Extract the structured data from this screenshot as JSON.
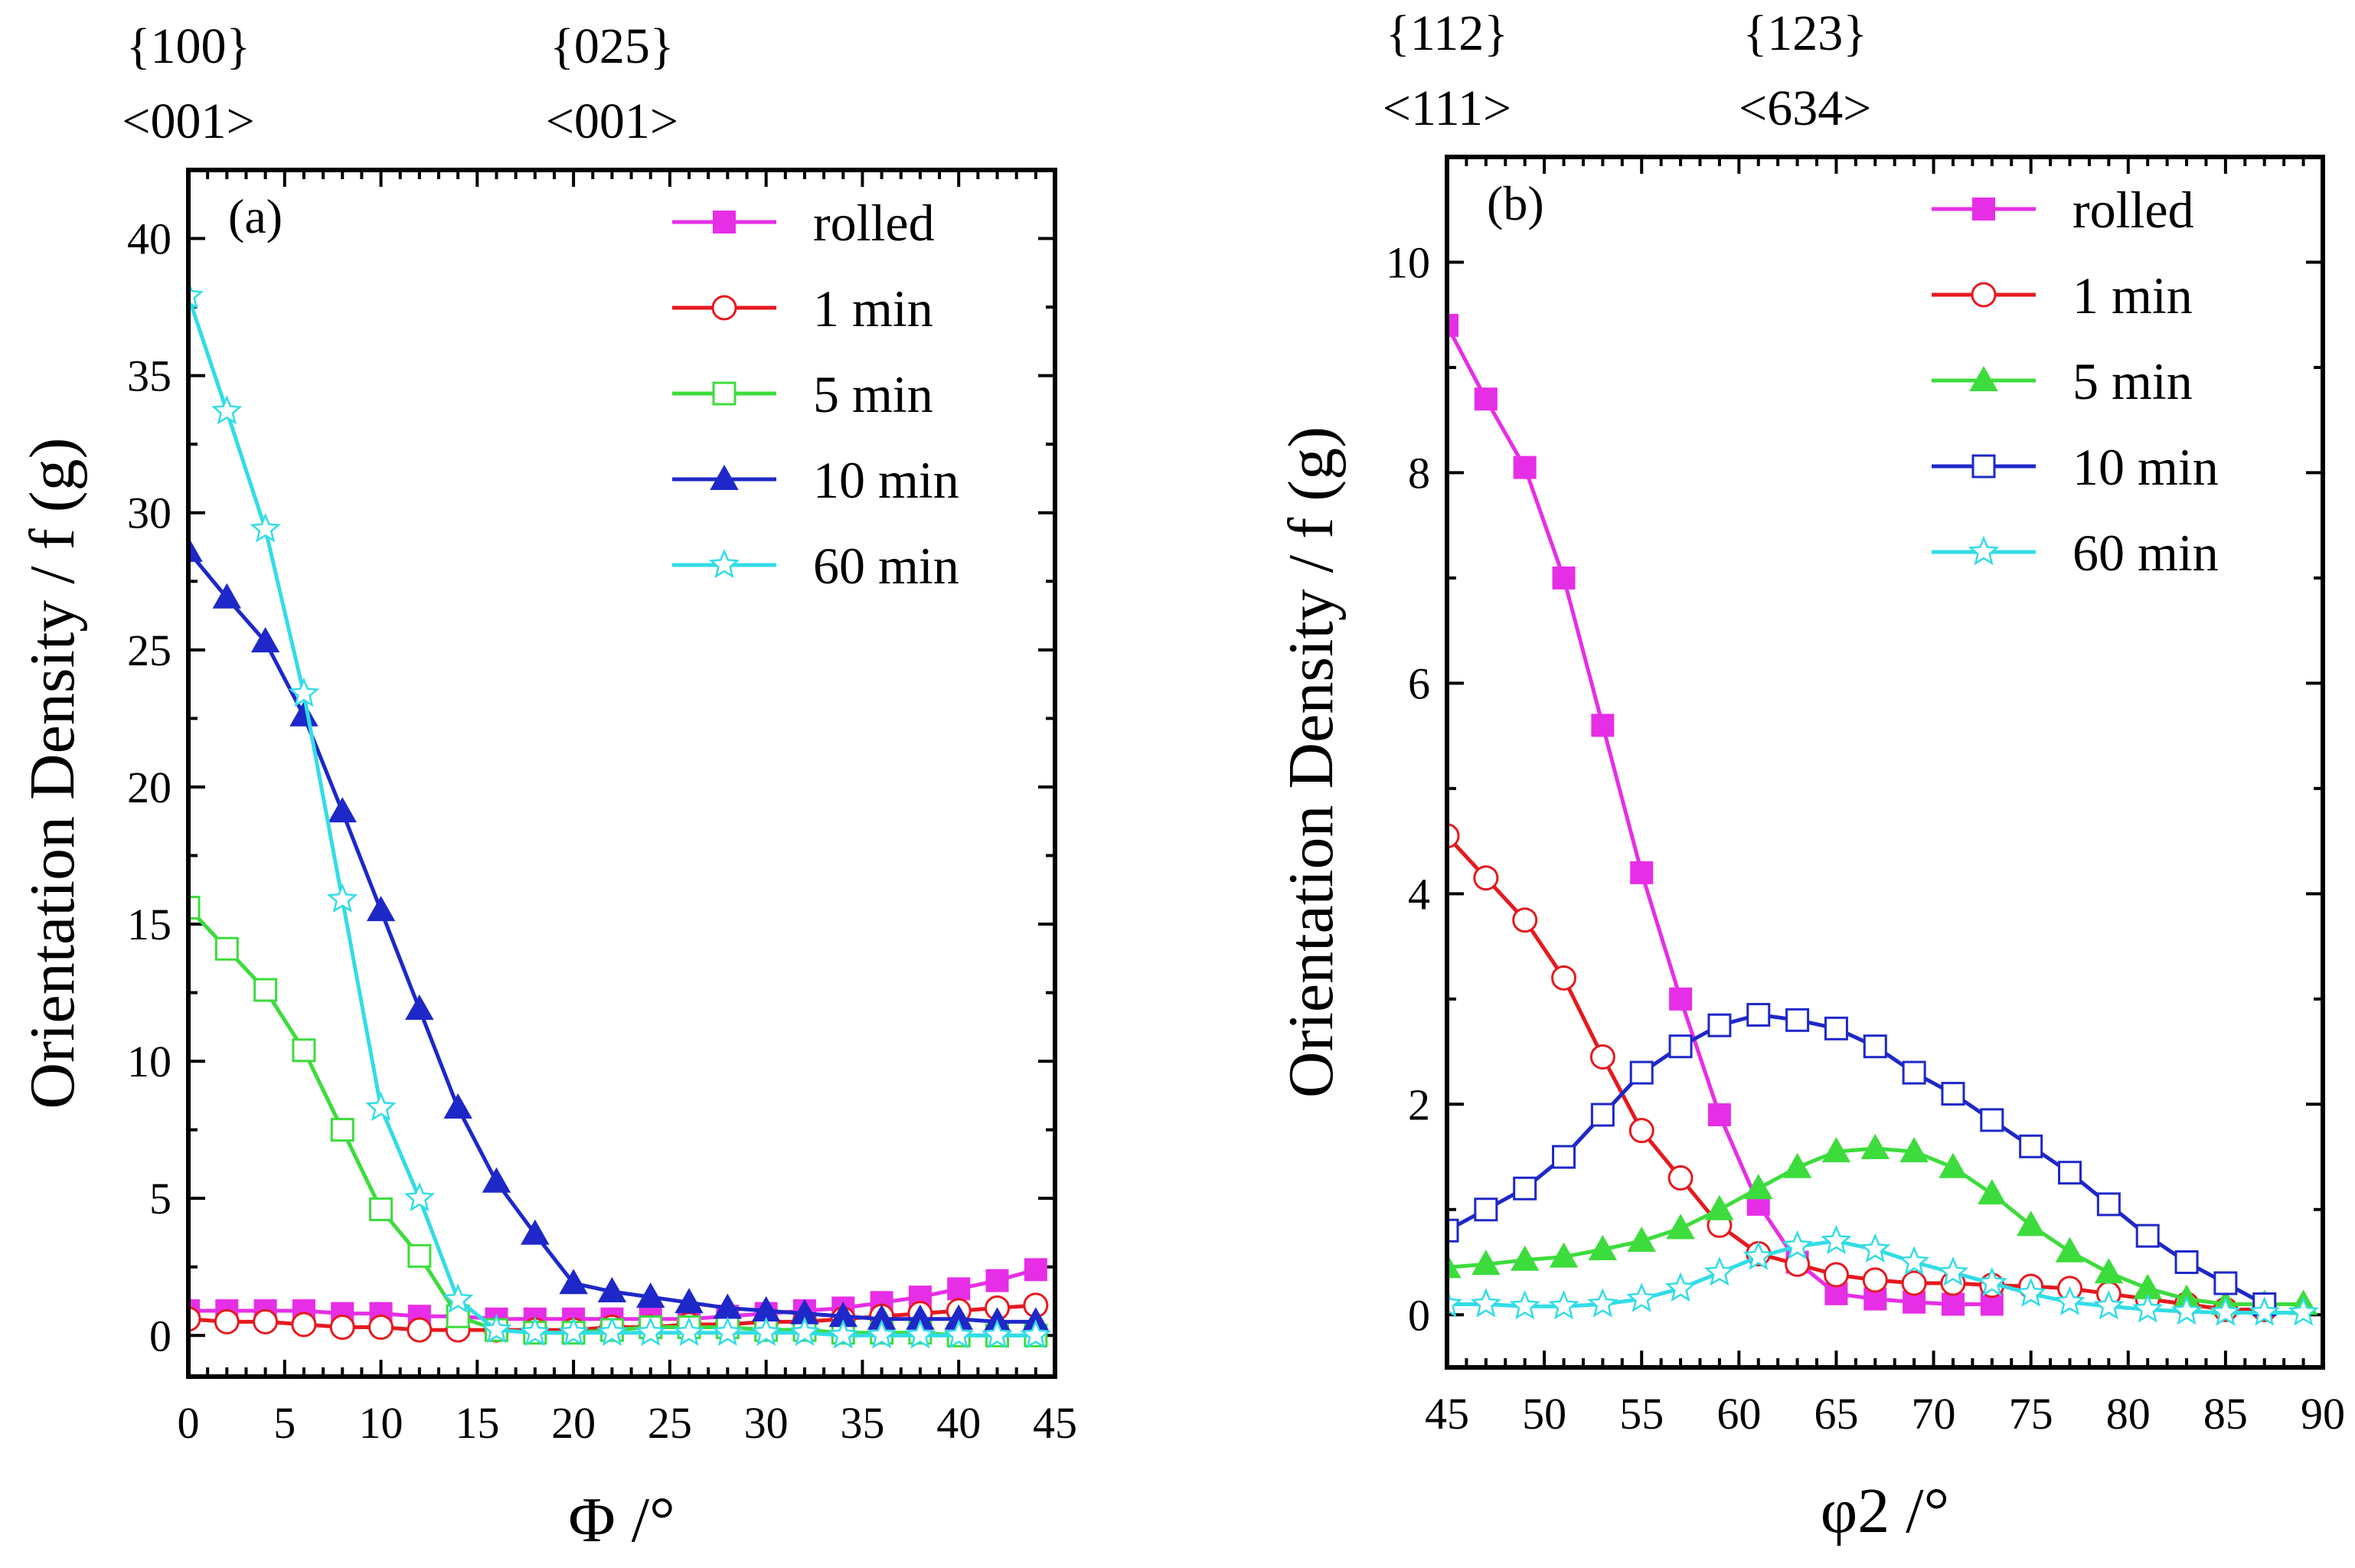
{
  "chart_data": [
    {
      "type": "line",
      "panel_label": "(a)",
      "xlabel": "Φ /°",
      "ylabel": "Orientation Density / f (g)",
      "xlim": [
        0,
        45
      ],
      "ylim": [
        -1.5,
        42.5
      ],
      "xticks": [
        0,
        5,
        10,
        15,
        20,
        25,
        30,
        35,
        40,
        45
      ],
      "yticks": [
        0,
        5,
        10,
        15,
        20,
        25,
        30,
        35,
        40
      ],
      "top_labels": [
        {
          "x": 0,
          "plane": "{100}",
          "direction": "<001>"
        },
        {
          "x": 22,
          "plane": "{025}",
          "direction": "<001>"
        }
      ],
      "x": [
        0,
        2,
        4,
        6,
        8,
        10,
        12,
        14,
        16,
        18,
        20,
        22,
        24,
        26,
        28,
        30,
        32,
        34,
        36,
        38,
        40,
        42,
        44
      ],
      "series": [
        {
          "name": "rolled",
          "color": "#e62ee6",
          "marker": "square-filled",
          "values": [
            0.9,
            0.9,
            0.9,
            0.9,
            0.8,
            0.8,
            0.7,
            0.7,
            0.6,
            0.6,
            0.6,
            0.6,
            0.6,
            0.6,
            0.7,
            0.8,
            0.9,
            1.0,
            1.2,
            1.4,
            1.7,
            2.0,
            2.4
          ]
        },
        {
          "name": "1 min",
          "color": "#e6191e",
          "marker": "circle-open",
          "values": [
            0.6,
            0.5,
            0.5,
            0.4,
            0.3,
            0.3,
            0.2,
            0.2,
            0.2,
            0.2,
            0.2,
            0.3,
            0.3,
            0.4,
            0.4,
            0.5,
            0.5,
            0.6,
            0.7,
            0.8,
            0.9,
            1.0,
            1.1
          ]
        },
        {
          "name": "5 min",
          "color": "#3cdc3c",
          "marker": "square-open",
          "values": [
            15.6,
            14.1,
            12.6,
            10.4,
            7.5,
            4.6,
            2.9,
            0.7,
            0.2,
            0.1,
            0.1,
            0.2,
            0.3,
            0.3,
            0.3,
            0.2,
            0.2,
            0.1,
            0.1,
            0.1,
            0.0,
            0.0,
            0.0
          ]
        },
        {
          "name": "10 min",
          "color": "#1e28c8",
          "marker": "triangle-filled",
          "values": [
            28.6,
            26.9,
            25.3,
            22.6,
            19.1,
            15.5,
            11.9,
            8.3,
            5.6,
            3.7,
            1.9,
            1.6,
            1.4,
            1.2,
            1.0,
            0.9,
            0.8,
            0.7,
            0.6,
            0.6,
            0.6,
            0.5,
            0.5
          ]
        },
        {
          "name": "60 min",
          "color": "#32dce6",
          "marker": "star-open",
          "values": [
            37.9,
            33.7,
            29.4,
            23.4,
            15.9,
            8.3,
            5.0,
            1.3,
            0.2,
            0.1,
            0.1,
            0.1,
            0.1,
            0.1,
            0.1,
            0.1,
            0.1,
            0.0,
            0.0,
            0.0,
            0.0,
            0.0,
            0.0
          ]
        }
      ],
      "legend": {
        "placement": "top-right",
        "entries": [
          "rolled",
          "1 min",
          "5 min",
          "10 min",
          "60 min"
        ]
      }
    },
    {
      "type": "line",
      "panel_label": "(b)",
      "xlabel": "φ2 /°",
      "ylabel": "Orientation Density / f (g)",
      "xlim": [
        45,
        90
      ],
      "ylim": [
        -0.5,
        11.0
      ],
      "xticks": [
        45,
        50,
        55,
        60,
        65,
        70,
        75,
        80,
        85,
        90
      ],
      "yticks": [
        0,
        2,
        4,
        6,
        8,
        10
      ],
      "top_labels": [
        {
          "x": 45,
          "plane": "{112}",
          "direction": "<111>"
        },
        {
          "x": 63.4,
          "plane": "{123}",
          "direction": "<634>"
        }
      ],
      "series": [
        {
          "name": "rolled",
          "color": "#e62ee6",
          "marker": "square-filled",
          "x": [
            45,
            47,
            49,
            51,
            53,
            55,
            57,
            59,
            61,
            63,
            65,
            67,
            69,
            71,
            73
          ],
          "values": [
            9.4,
            8.7,
            8.05,
            7.0,
            5.6,
            4.2,
            3.0,
            1.9,
            1.05,
            0.5,
            0.2,
            0.15,
            0.12,
            0.1,
            0.1
          ]
        },
        {
          "name": "1 min",
          "color": "#e6191e",
          "marker": "circle-open",
          "x": [
            45,
            47,
            49,
            51,
            53,
            55,
            57,
            59,
            61,
            63,
            65,
            67,
            69,
            71,
            73,
            75,
            77,
            79,
            81,
            83,
            85,
            87
          ],
          "values": [
            4.55,
            4.15,
            3.75,
            3.2,
            2.45,
            1.75,
            1.3,
            0.85,
            0.58,
            0.48,
            0.38,
            0.33,
            0.3,
            0.3,
            0.28,
            0.27,
            0.25,
            0.2,
            0.15,
            0.1,
            0.05,
            0.05
          ]
        },
        {
          "name": "5 min",
          "color": "#3cdc3c",
          "marker": "triangle-filled",
          "x": [
            45,
            47,
            49,
            51,
            53,
            55,
            57,
            59,
            61,
            63,
            65,
            67,
            69,
            71,
            73,
            75,
            77,
            79,
            81,
            83,
            85,
            87,
            89
          ],
          "values": [
            0.45,
            0.48,
            0.52,
            0.55,
            0.62,
            0.7,
            0.82,
            1.0,
            1.2,
            1.4,
            1.55,
            1.58,
            1.55,
            1.4,
            1.15,
            0.85,
            0.6,
            0.4,
            0.25,
            0.15,
            0.1,
            0.1,
            0.1
          ]
        },
        {
          "name": "10 min",
          "color": "#1e28c8",
          "marker": "square-open",
          "x": [
            45,
            47,
            49,
            51,
            53,
            55,
            57,
            59,
            61,
            63,
            65,
            67,
            69,
            71,
            73,
            75,
            77,
            79,
            81,
            83,
            85,
            87
          ],
          "values": [
            0.8,
            1.0,
            1.2,
            1.5,
            1.9,
            2.3,
            2.55,
            2.75,
            2.85,
            2.8,
            2.72,
            2.55,
            2.3,
            2.1,
            1.85,
            1.6,
            1.35,
            1.05,
            0.75,
            0.5,
            0.3,
            0.1
          ]
        },
        {
          "name": "60 min",
          "color": "#32dce6",
          "marker": "star-open",
          "x": [
            45,
            47,
            49,
            51,
            53,
            55,
            57,
            59,
            61,
            63,
            65,
            67,
            69,
            71,
            73,
            75,
            77,
            79,
            81,
            83,
            85,
            87,
            89
          ],
          "values": [
            0.1,
            0.1,
            0.08,
            0.08,
            0.1,
            0.15,
            0.25,
            0.4,
            0.55,
            0.65,
            0.7,
            0.62,
            0.5,
            0.4,
            0.3,
            0.2,
            0.12,
            0.08,
            0.05,
            0.03,
            0.02,
            0.02,
            0.02
          ]
        }
      ],
      "legend": {
        "placement": "top-right",
        "entries": [
          "rolled",
          "1 min",
          "5 min",
          "10 min",
          "60 min"
        ]
      }
    }
  ]
}
